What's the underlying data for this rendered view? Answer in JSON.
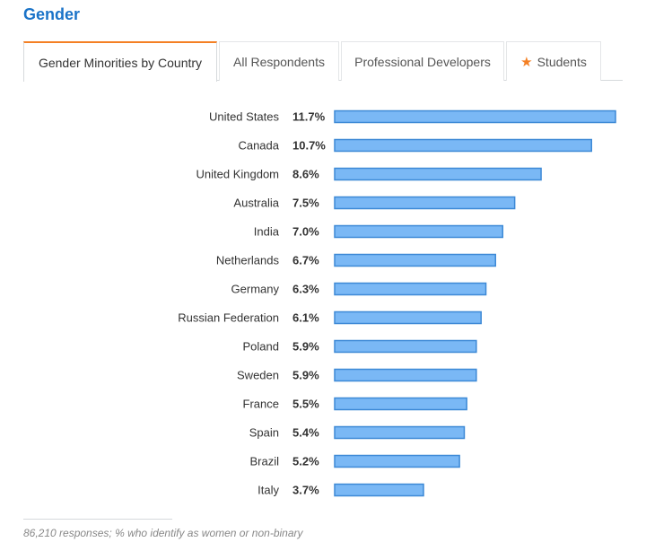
{
  "heading": "Gender",
  "tabs": [
    {
      "label": "Gender Minorities by Country",
      "active": true
    },
    {
      "label": "All Respondents",
      "active": false
    },
    {
      "label": "Professional Developers",
      "active": false
    },
    {
      "label": "Students",
      "active": false,
      "icon": "star-icon"
    }
  ],
  "colors": {
    "heading": "#1a73c8",
    "bar_fill": "#7ab8f5",
    "bar_stroke": "#3d89d6",
    "active_tab_accent": "#f48024",
    "star": "#f48024"
  },
  "chart_data": {
    "type": "bar",
    "orientation": "horizontal",
    "title": "",
    "xlabel": "",
    "ylabel": "",
    "xlim": [
      0,
      11.7
    ],
    "grid": false,
    "categories": [
      "United States",
      "Canada",
      "United Kingdom",
      "Australia",
      "India",
      "Netherlands",
      "Germany",
      "Russian Federation",
      "Poland",
      "Sweden",
      "France",
      "Spain",
      "Brazil",
      "Italy"
    ],
    "values": [
      11.7,
      10.7,
      8.6,
      7.5,
      7.0,
      6.7,
      6.3,
      6.1,
      5.9,
      5.9,
      5.5,
      5.4,
      5.2,
      3.7
    ],
    "value_labels": [
      "11.7%",
      "10.7%",
      "8.6%",
      "7.5%",
      "7.0%",
      "6.7%",
      "6.3%",
      "6.1%",
      "5.9%",
      "5.9%",
      "5.5%",
      "5.4%",
      "5.2%",
      "3.7%"
    ]
  },
  "footnote": "86,210 responses; % who identify as women or non-binary"
}
